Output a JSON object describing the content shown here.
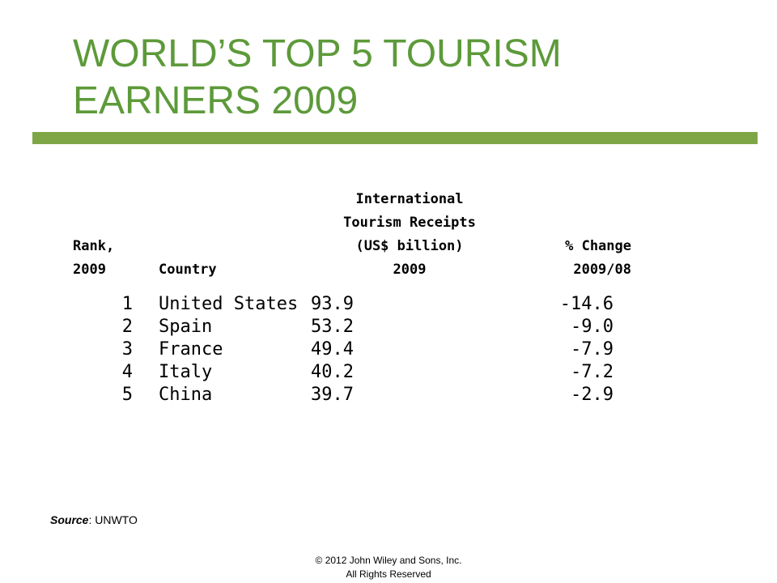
{
  "slide": {
    "title": "WORLD’S TOP 5 TOURISM EARNERS 2009",
    "accent_color": "#5d9a3a",
    "bar_color": "#7fa646"
  },
  "table": {
    "headers": {
      "rank": [
        "Rank,",
        "2009"
      ],
      "country": [
        "Country"
      ],
      "receipts": [
        "International",
        "Tourism Receipts",
        "(US$ billion)",
        "2009"
      ],
      "change": [
        "% Change",
        "2009/08"
      ]
    },
    "rows": [
      {
        "rank": "1",
        "country": "United States",
        "receipts": "93.9",
        "change": "-14.6"
      },
      {
        "rank": "2",
        "country": "Spain",
        "receipts": "53.2",
        "change": "-9.0"
      },
      {
        "rank": "3",
        "country": "France",
        "receipts": "49.4",
        "change": "-7.9"
      },
      {
        "rank": "4",
        "country": "Italy",
        "receipts": "40.2",
        "change": "-7.2"
      },
      {
        "rank": "5",
        "country": "China",
        "receipts": "39.7",
        "change": "-2.9"
      }
    ]
  },
  "source": {
    "label": "Source",
    "text": ": UNWTO"
  },
  "footer": {
    "line1": "© 2012 John Wiley and Sons, Inc.",
    "line2": "All Rights Reserved"
  }
}
